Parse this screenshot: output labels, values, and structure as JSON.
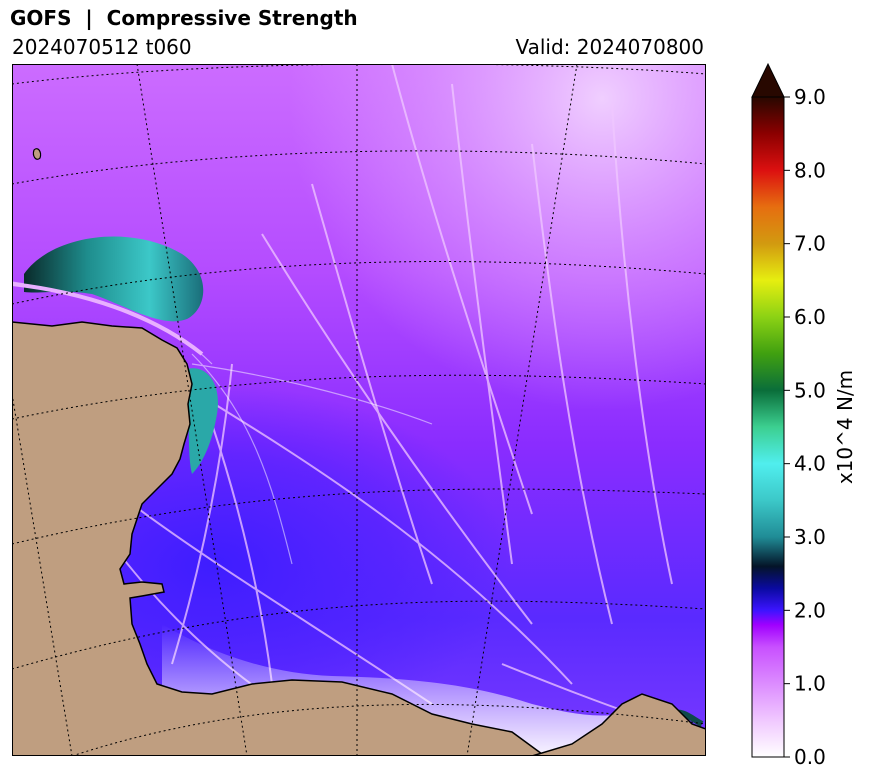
{
  "header": {
    "title": "GOFS  |  Compressive Strength",
    "run": "2024070512 t060",
    "valid": "Valid: 2024070800"
  },
  "colorbar": {
    "unit_label": "x10^4 N/m",
    "min": 0.0,
    "max": 9.0,
    "ticks": [
      "0.0",
      "1.0",
      "2.0",
      "3.0",
      "4.0",
      "5.0",
      "6.0",
      "7.0",
      "8.0",
      "9.0"
    ],
    "extend": "max",
    "colors": {
      "0.0": "#ffffff",
      "0.5": "#f0c8ff",
      "1.0": "#dc8cff",
      "1.5": "#c850ff",
      "1.8": "#a000ff",
      "2.0": "#3c14ff",
      "2.3": "#0a0aa0",
      "2.6": "#041428",
      "3.0": "#208c96",
      "3.5": "#3cc8c8",
      "4.0": "#50eeee",
      "4.5": "#3ccf90",
      "5.0": "#0a6e3a",
      "5.5": "#40a010",
      "6.0": "#8cd214",
      "6.5": "#e6ee10",
      "7.0": "#d29a10",
      "7.5": "#e66e10",
      "8.0": "#dc1010",
      "8.5": "#8c0000",
      "9.0": "#280800"
    }
  },
  "map": {
    "land_color": "#bf9e80",
    "graticule_style": "dotted"
  }
}
